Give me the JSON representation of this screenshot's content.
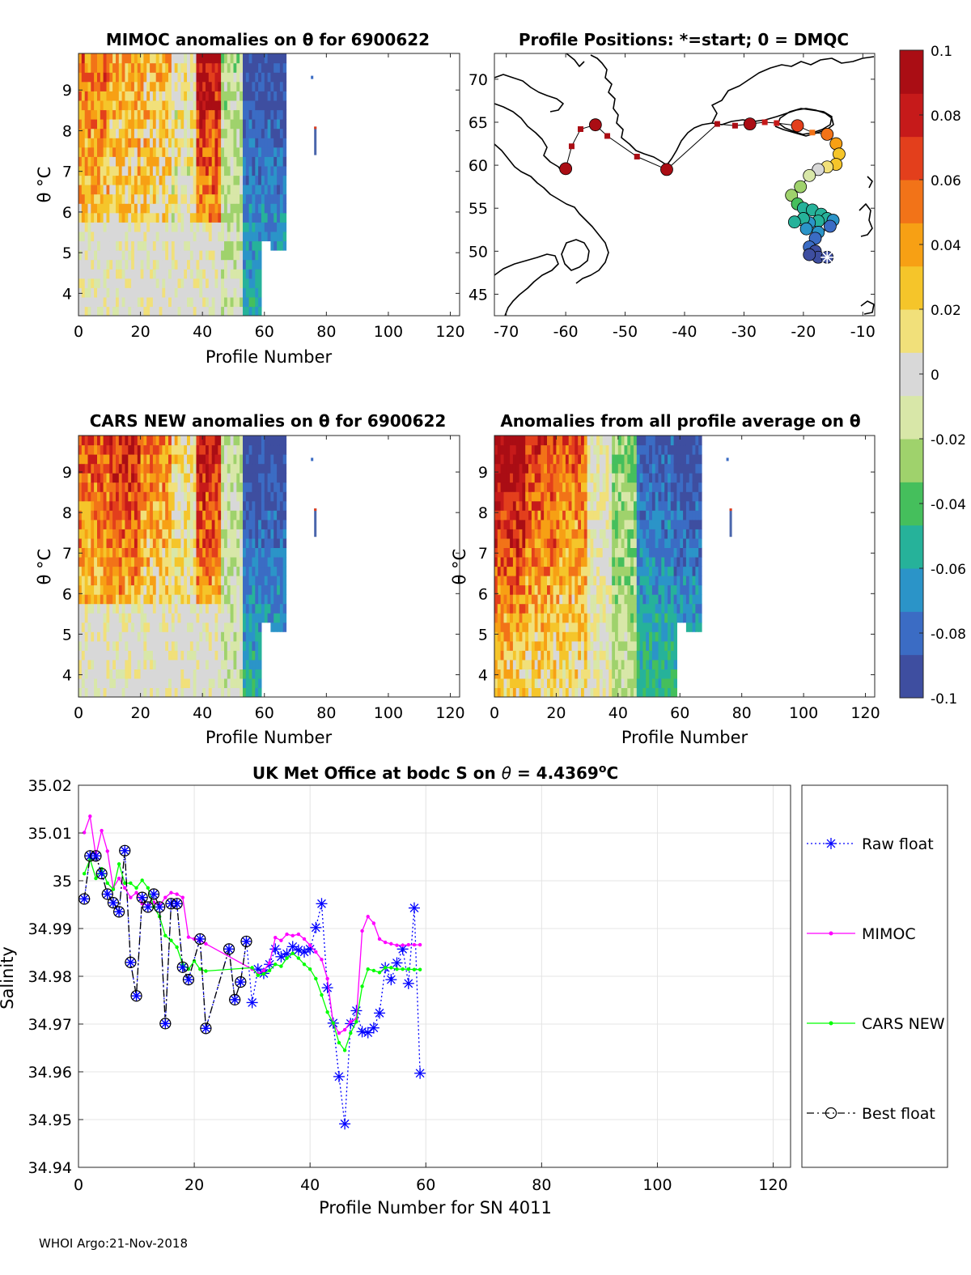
{
  "colors": {
    "raw_float": "#0000ff",
    "mimoc": "#ff00ff",
    "cars_new": "#00ff00",
    "best_float": "#000000",
    "land": "#000000",
    "missing": "#4a66ac",
    "grid": "#e4e4e4"
  },
  "colorbar": {
    "min": -0.1,
    "max": 0.1,
    "tick_labels": [
      "0.1",
      "0.08",
      "0.06",
      "0.04",
      "0.02",
      "0",
      "-0.02",
      "-0.04",
      "-0.06",
      "-0.08",
      "-0.1"
    ],
    "colormap": [
      "#3e4ea0",
      "#3b6cc4",
      "#2b94c8",
      "#26b29a",
      "#45bf5c",
      "#9fd26c",
      "#d8e7a8",
      "#d8d8d8",
      "#f1e07a",
      "#f5c52a",
      "#f7a014",
      "#f27318",
      "#e33f1c",
      "#c61a1a",
      "#aa0d14"
    ]
  },
  "chart_data": [
    {
      "id": "mimoc_panel",
      "type": "heatmap",
      "title": "MIMOC anomalies on θ  for 6900622",
      "xlabel": "Profile Number",
      "ylabel": "θ °C",
      "xlim": [
        0,
        123
      ],
      "ylim": [
        3.45,
        9.9
      ],
      "xticks": [
        0,
        20,
        40,
        60,
        80,
        100,
        120
      ],
      "yticks": [
        4,
        5,
        6,
        7,
        8,
        9
      ],
      "n_profiles": 59,
      "stray_profile": 75,
      "columns": [
        {
          "from": 0,
          "to": 10,
          "anomaly": 0.05
        },
        {
          "from": 10,
          "to": 20,
          "anomaly": 0.035
        },
        {
          "from": 20,
          "to": 30,
          "anomaly": 0.03
        },
        {
          "from": 30,
          "to": 38,
          "anomaly": 0.005
        },
        {
          "from": 38,
          "to": 46,
          "anomaly": 0.085
        },
        {
          "from": 46,
          "to": 53,
          "anomaly": -0.02
        },
        {
          "from": 53,
          "to": 67,
          "anomaly": -0.095
        }
      ]
    },
    {
      "id": "map_panel",
      "type": "scatter",
      "title": "Profile Positions: *=start; 0 = DMQC",
      "xlim": [
        -72,
        -8
      ],
      "ylim": [
        42.5,
        73
      ],
      "xticks": [
        -70,
        -60,
        -50,
        -40,
        -30,
        -20,
        -10
      ],
      "yticks": [
        45,
        50,
        55,
        60,
        65,
        70
      ],
      "start_marker": "*",
      "track": [
        {
          "lon": -60.0,
          "lat": 59.6,
          "anomaly": 0.1
        },
        {
          "lon": -59.0,
          "lat": 62.2,
          "anomaly": 0.1
        },
        {
          "lon": -57.5,
          "lat": 64.2,
          "anomaly": 0.1
        },
        {
          "lon": -55.0,
          "lat": 64.7,
          "anomaly": 0.1
        },
        {
          "lon": -53.0,
          "lat": 63.4,
          "anomaly": 0.1
        },
        {
          "lon": -48.0,
          "lat": 61.0,
          "anomaly": 0.1
        },
        {
          "lon": -43.0,
          "lat": 59.5,
          "anomaly": 0.1
        },
        {
          "lon": -34.5,
          "lat": 64.8,
          "anomaly": 0.09
        },
        {
          "lon": -31.5,
          "lat": 64.6,
          "anomaly": 0.09
        },
        {
          "lon": -29.0,
          "lat": 64.8,
          "anomaly": 0.09
        },
        {
          "lon": -26.5,
          "lat": 65.0,
          "anomaly": 0.085
        },
        {
          "lon": -24.5,
          "lat": 64.9,
          "anomaly": 0.085
        },
        {
          "lon": -21.0,
          "lat": 64.6,
          "anomaly": 0.07
        },
        {
          "lon": -18.5,
          "lat": 63.8,
          "anomaly": 0.06
        },
        {
          "lon": -16.0,
          "lat": 63.6,
          "anomaly": 0.05
        },
        {
          "lon": -14.5,
          "lat": 62.5,
          "anomaly": 0.04
        },
        {
          "lon": -14.0,
          "lat": 61.3,
          "anomaly": 0.03
        },
        {
          "lon": -14.5,
          "lat": 60.1,
          "anomaly": 0.02
        },
        {
          "lon": -16.0,
          "lat": 59.8,
          "anomaly": 0.01
        },
        {
          "lon": -17.5,
          "lat": 59.5,
          "anomaly": 0.0
        },
        {
          "lon": -19.0,
          "lat": 58.8,
          "anomaly": -0.01
        },
        {
          "lon": -20.5,
          "lat": 57.5,
          "anomaly": -0.02
        },
        {
          "lon": -22.0,
          "lat": 56.5,
          "anomaly": -0.03
        },
        {
          "lon": -21.0,
          "lat": 55.5,
          "anomaly": -0.04
        },
        {
          "lon": -20.0,
          "lat": 55.0,
          "anomaly": -0.05
        },
        {
          "lon": -18.5,
          "lat": 54.8,
          "anomaly": -0.055
        },
        {
          "lon": -17.0,
          "lat": 54.3,
          "anomaly": -0.06
        },
        {
          "lon": -16.0,
          "lat": 53.8,
          "anomaly": -0.06
        },
        {
          "lon": -15.0,
          "lat": 53.6,
          "anomaly": -0.065
        },
        {
          "lon": -17.5,
          "lat": 53.5,
          "anomaly": -0.06
        },
        {
          "lon": -19.0,
          "lat": 53.3,
          "anomaly": -0.065
        },
        {
          "lon": -20.0,
          "lat": 53.8,
          "anomaly": -0.06
        },
        {
          "lon": -21.5,
          "lat": 53.4,
          "anomaly": -0.055
        },
        {
          "lon": -19.5,
          "lat": 52.6,
          "anomaly": -0.07
        },
        {
          "lon": -17.5,
          "lat": 52.2,
          "anomaly": -0.07
        },
        {
          "lon": -15.5,
          "lat": 52.9,
          "anomaly": -0.075
        },
        {
          "lon": -18.0,
          "lat": 51.5,
          "anomaly": -0.08
        },
        {
          "lon": -19.0,
          "lat": 50.5,
          "anomaly": -0.085
        },
        {
          "lon": -18.0,
          "lat": 50.0,
          "anomaly": -0.09
        },
        {
          "lon": -17.5,
          "lat": 49.3,
          "anomaly": -0.09
        },
        {
          "lon": -19.0,
          "lat": 49.6,
          "anomaly": -0.09
        },
        {
          "lon": -16.0,
          "lat": 49.3,
          "anomaly": -0.095
        }
      ]
    },
    {
      "id": "cars_panel",
      "type": "heatmap",
      "title": "CARS NEW anomalies on θ for 6900622",
      "xlabel": "Profile Number",
      "ylabel": "θ °C",
      "xlim": [
        0,
        123
      ],
      "ylim": [
        3.45,
        9.9
      ],
      "xticks": [
        0,
        20,
        40,
        60,
        80,
        100,
        120
      ],
      "yticks": [
        4,
        5,
        6,
        7,
        8,
        9
      ],
      "n_profiles": 59,
      "stray_profile": 75,
      "columns": [
        {
          "from": 0,
          "to": 10,
          "anomaly": 0.06
        },
        {
          "from": 10,
          "to": 20,
          "anomaly": 0.075
        },
        {
          "from": 20,
          "to": 30,
          "anomaly": 0.045
        },
        {
          "from": 30,
          "to": 38,
          "anomaly": 0.01
        },
        {
          "from": 38,
          "to": 46,
          "anomaly": 0.08
        },
        {
          "from": 46,
          "to": 53,
          "anomaly": -0.015
        },
        {
          "from": 53,
          "to": 67,
          "anomaly": -0.095
        }
      ]
    },
    {
      "id": "avg_panel",
      "type": "heatmap",
      "title": "Anomalies from all profile average on θ",
      "xlabel": "Profile Number",
      "ylabel": "θ °C",
      "xlim": [
        0,
        123
      ],
      "ylim": [
        3.45,
        9.9
      ],
      "xticks": [
        0,
        20,
        40,
        60,
        80,
        100,
        120
      ],
      "yticks": [
        4,
        5,
        6,
        7,
        8,
        9
      ],
      "n_profiles": 59,
      "stray_profile": 75,
      "columns": [
        {
          "from": 0,
          "to": 10,
          "anomaly": 0.1
        },
        {
          "from": 10,
          "to": 20,
          "anomaly": 0.07
        },
        {
          "from": 20,
          "to": 30,
          "anomaly": 0.055
        },
        {
          "from": 30,
          "to": 38,
          "anomaly": 0.0
        },
        {
          "from": 38,
          "to": 46,
          "anomaly": -0.03
        },
        {
          "from": 46,
          "to": 58,
          "anomaly": -0.085
        },
        {
          "from": 58,
          "to": 67,
          "anomaly": -0.095
        }
      ]
    },
    {
      "id": "salinity_panel",
      "type": "line",
      "title_prefix": "UK Met Office at bodc S on ",
      "title_symbol": "θ",
      "title_value": " = 4.4369",
      "title_sup": "o",
      "title_unit": "C",
      "xlabel": "Profile Number for SN 4011",
      "ylabel": "Salinity",
      "xlim": [
        0,
        123
      ],
      "ylim": [
        34.94,
        35.02
      ],
      "xticks": [
        0,
        20,
        40,
        60,
        80,
        100,
        120
      ],
      "yticks": [
        34.94,
        34.95,
        34.96,
        34.97,
        34.98,
        34.99,
        35.0,
        35.01,
        35.02
      ],
      "ytick_labels": [
        "34.94",
        "34.95",
        "34.96",
        "34.97",
        "34.98",
        "34.99",
        "35",
        "35.01",
        "35.02"
      ],
      "series": [
        {
          "name": "Raw float",
          "style": "dotted-star",
          "x": [
            1,
            2,
            3,
            4,
            5,
            6,
            7,
            8,
            9,
            10,
            11,
            12,
            13,
            14,
            15,
            16,
            17,
            18,
            19,
            21,
            22,
            26,
            27,
            28,
            29,
            30,
            31,
            32,
            33,
            34,
            35,
            36,
            37,
            38,
            39,
            40,
            41,
            42,
            43,
            44,
            45,
            46,
            47,
            48,
            49,
            50,
            51,
            52,
            53,
            54,
            55,
            56,
            57,
            58,
            59
          ],
          "y": [
            34.9962,
            35.0052,
            35.0052,
            35.0015,
            34.9972,
            34.9954,
            34.9935,
            35.0063,
            34.9829,
            34.9759,
            34.9965,
            34.9945,
            34.9972,
            34.9945,
            34.9701,
            34.9952,
            34.9952,
            34.9819,
            34.9793,
            34.9878,
            34.9691,
            34.9857,
            34.9751,
            34.9788,
            34.9873,
            34.9745,
            34.9815,
            34.9806,
            34.9825,
            34.9857,
            34.9841,
            34.9847,
            34.9862,
            34.9855,
            34.9851,
            34.9857,
            34.9902,
            34.9952,
            34.9776,
            34.9702,
            34.959,
            34.9491,
            34.9701,
            34.9728,
            34.9684,
            34.9682,
            34.9692,
            34.9723,
            34.9818,
            34.9793,
            34.9828,
            34.9857,
            34.9785,
            34.9943,
            34.9597
          ]
        },
        {
          "name": "MIMOC",
          "style": "solid-dot",
          "x": [
            1,
            2,
            3,
            4,
            5,
            6,
            7,
            8,
            9,
            10,
            11,
            12,
            13,
            14,
            15,
            16,
            17,
            18,
            19,
            20,
            21,
            22,
            30,
            31,
            32,
            33,
            34,
            35,
            36,
            37,
            38,
            39,
            40,
            41,
            42,
            43,
            44,
            45,
            46,
            47,
            48,
            49,
            50,
            51,
            52,
            53,
            54,
            55,
            56,
            57,
            58,
            59
          ],
          "y": [
            35.0101,
            35.0135,
            35.0052,
            35.0105,
            35.0062,
            34.9985,
            35.0005,
            34.9985,
            34.9965,
            34.9975,
            34.9952,
            34.9948,
            34.9955,
            34.9948,
            34.9965,
            34.9975,
            34.9972,
            34.9965,
            34.9882,
            34.9878,
            34.9875,
            34.9868,
            34.9815,
            34.9805,
            34.9812,
            34.9828,
            34.9881,
            34.9875,
            34.9888,
            34.9885,
            34.9888,
            34.9878,
            34.9865,
            34.9851,
            34.9835,
            34.9795,
            34.9701,
            34.9681,
            34.9688,
            34.9705,
            34.9711,
            34.9895,
            34.9925,
            34.9911,
            34.9878,
            34.9871,
            34.9868,
            34.9865,
            34.9865,
            34.9866,
            34.9866,
            34.9866
          ]
        },
        {
          "name": "CARS NEW",
          "style": "solid-dot",
          "x": [
            1,
            2,
            3,
            4,
            5,
            6,
            7,
            8,
            9,
            10,
            11,
            12,
            13,
            14,
            15,
            16,
            17,
            18,
            19,
            20,
            21,
            22,
            30,
            31,
            32,
            33,
            34,
            35,
            36,
            37,
            38,
            39,
            40,
            41,
            42,
            43,
            44,
            45,
            46,
            47,
            48,
            49,
            50,
            51,
            52,
            53,
            54,
            55,
            56,
            57,
            58,
            59
          ],
          "y": [
            35.0015,
            35.0045,
            35.0005,
            35.0025,
            34.9995,
            34.9982,
            35.0035,
            34.9995,
            34.9995,
            34.9985,
            35.0001,
            34.9985,
            34.9945,
            34.9925,
            34.9885,
            34.9875,
            34.9861,
            34.9825,
            34.9815,
            34.9832,
            34.9815,
            34.9811,
            34.9818,
            34.9802,
            34.9805,
            34.9812,
            34.9825,
            34.9821,
            34.9838,
            34.9848,
            34.9838,
            34.9825,
            34.9815,
            34.9795,
            34.9761,
            34.9725,
            34.9702,
            34.9661,
            34.9645,
            34.9681,
            34.9705,
            34.9779,
            34.9815,
            34.9812,
            34.9808,
            34.9818,
            34.9818,
            34.9815,
            34.9815,
            34.9815,
            34.9814,
            34.9814
          ]
        },
        {
          "name": "Best float",
          "style": "dashdot-circle",
          "x": [
            1,
            2,
            3,
            4,
            5,
            6,
            7,
            8,
            9,
            10,
            11,
            12,
            13,
            14,
            15,
            16,
            17,
            18,
            19,
            21,
            22,
            26,
            27,
            28,
            29
          ],
          "y": [
            34.9962,
            35.0052,
            35.0052,
            35.0015,
            34.9972,
            34.9954,
            34.9935,
            35.0063,
            34.9829,
            34.9759,
            34.9965,
            34.9945,
            34.9972,
            34.9945,
            34.9701,
            34.9952,
            34.9952,
            34.9819,
            34.9793,
            34.9878,
            34.9691,
            34.9857,
            34.9751,
            34.9788,
            34.9873
          ]
        }
      ]
    }
  ],
  "footer": "WHOI Argo:21-Nov-2018"
}
